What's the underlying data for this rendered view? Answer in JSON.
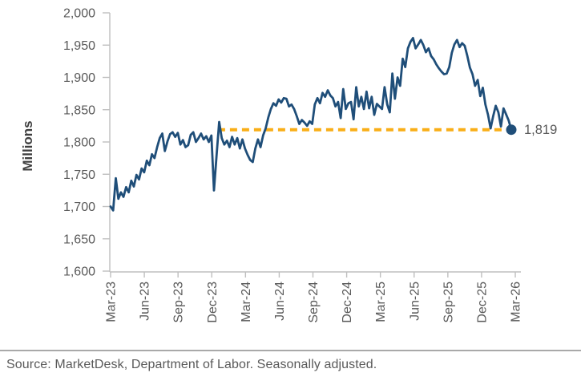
{
  "chart_data": {
    "type": "line",
    "title": "",
    "ylabel": "Millions",
    "ylim": [
      1600,
      2000
    ],
    "ytick_step": 50,
    "grid": false,
    "legend": "none",
    "y_tick_labels": [
      "2,000",
      "1,950",
      "1,900",
      "1,850",
      "1,800",
      "1,750",
      "1,700",
      "1,650",
      "1,600"
    ],
    "x_tick_labels": [
      "Mar-23",
      "Jun-23",
      "Sep-23",
      "Dec-23",
      "Mar-24",
      "Jun-24",
      "Sep-24",
      "Dec-24",
      "Mar-25",
      "Jun-25",
      "Sep-25",
      "Dec-25",
      "Mar-26"
    ],
    "x_frequency": "weekly",
    "series": [
      {
        "color": "#1F4E79",
        "values": [
          1700,
          1694,
          1744,
          1712,
          1722,
          1715,
          1730,
          1722,
          1740,
          1731,
          1749,
          1742,
          1759,
          1753,
          1771,
          1764,
          1781,
          1775,
          1792,
          1806,
          1813,
          1786,
          1801,
          1812,
          1815,
          1808,
          1814,
          1796,
          1803,
          1792,
          1795,
          1811,
          1815,
          1800,
          1806,
          1813,
          1804,
          1809,
          1800,
          1810,
          1725,
          1780,
          1831,
          1806,
          1796,
          1802,
          1792,
          1808,
          1796,
          1806,
          1790,
          1804,
          1790,
          1780,
          1772,
          1769,
          1790,
          1804,
          1792,
          1810,
          1821,
          1838,
          1851,
          1860,
          1856,
          1866,
          1861,
          1868,
          1867,
          1855,
          1858,
          1851,
          1840,
          1828,
          1834,
          1830,
          1825,
          1832,
          1828,
          1858,
          1868,
          1860,
          1876,
          1870,
          1880,
          1872,
          1868,
          1855,
          1862,
          1837,
          1882,
          1851,
          1860,
          1862,
          1835,
          1885,
          1855,
          1870,
          1851,
          1878,
          1852,
          1870,
          1842,
          1859,
          1855,
          1851,
          1885,
          1858,
          1846,
          1906,
          1867,
          1900,
          1887,
          1929,
          1916,
          1945,
          1955,
          1961,
          1945,
          1951,
          1958,
          1950,
          1939,
          1945,
          1933,
          1928,
          1920,
          1914,
          1909,
          1905,
          1906,
          1916,
          1938,
          1951,
          1958,
          1947,
          1953,
          1949,
          1933,
          1915,
          1905,
          1887,
          1896,
          1871,
          1884,
          1858,
          1842,
          1821,
          1840,
          1856,
          1846,
          1824,
          1852,
          1843,
          1833,
          1819
        ]
      }
    ],
    "reference_line": {
      "value": 1819,
      "label": "1,819",
      "style": "dashed",
      "color": "#F9AE17"
    },
    "end_marker": {
      "value": 1819,
      "color": "#1F4E79"
    }
  },
  "colors": {
    "line": "#1F4E79",
    "dashed": "#F9AE17",
    "axis": "#BFBFBF",
    "tick_text": "#595959",
    "axis_title": "#3F3F3F",
    "end_label": "#595959",
    "divider": "#A9A9A9",
    "background": "#FFFFFF"
  },
  "footer": {
    "source": "Source: MarketDesk, Department of Labor. Seasonally adjusted."
  }
}
